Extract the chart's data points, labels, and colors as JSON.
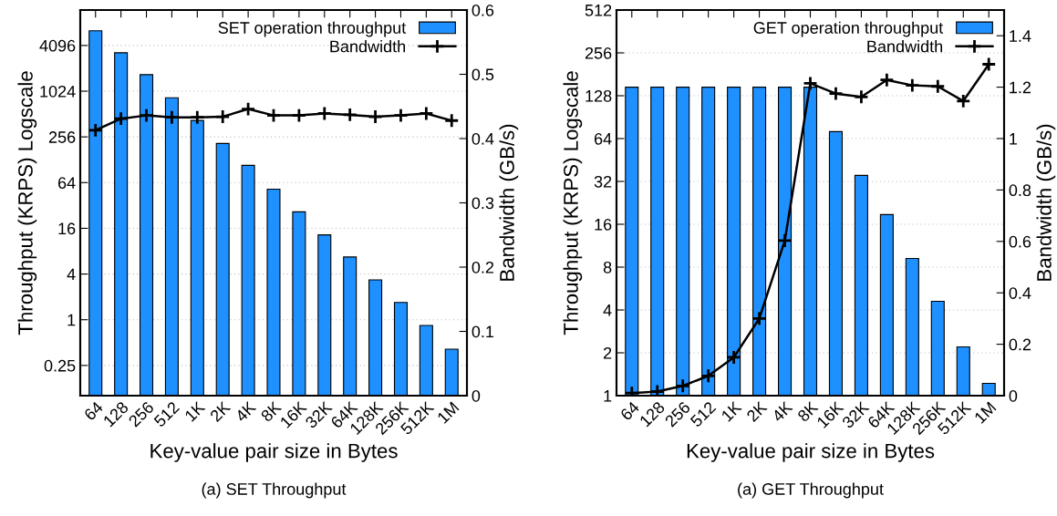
{
  "chart_data": [
    {
      "type": "bar",
      "xlabel": "Key-value pair size in Bytes",
      "ylabel": "Throughput (KRPS) Logscale",
      "y2label": "Bandwidth (GB/s)",
      "categories": [
        "64",
        "128",
        "256",
        "512",
        "1K",
        "2K",
        "4K",
        "8K",
        "16K",
        "32K",
        "64K",
        "128K",
        "256K",
        "512K",
        "1M"
      ],
      "log": "y",
      "ylim": [
        0.1,
        12000
      ],
      "yticks": [
        0.25,
        1,
        4,
        16,
        64,
        256,
        1024,
        4096
      ],
      "y2lim": [
        0,
        0.6
      ],
      "y2ticks": [
        0,
        0.1,
        0.2,
        0.3,
        0.4,
        0.5,
        0.6
      ],
      "grid": "y",
      "legend": "top right",
      "annotations": [
        "(a) SET Throughput"
      ],
      "series": [
        {
          "name": "SET operation throughput",
          "color": "#1e90ff",
          "values": [
            6400,
            3280,
            1690,
            840,
            422,
            210,
            108,
            52.5,
            26.4,
            13.1,
            6.7,
            3.35,
            1.69,
            0.84,
            0.41
          ]
        },
        {
          "name": "Bandwidth",
          "type": "line",
          "axis": "y2",
          "color": "#000000",
          "marker": "cross",
          "line_style": "solid",
          "values": [
            0.413,
            0.431,
            0.436,
            0.433,
            0.433,
            0.434,
            0.446,
            0.436,
            0.436,
            0.439,
            0.437,
            0.434,
            0.436,
            0.439,
            0.428
          ]
        }
      ]
    },
    {
      "type": "bar",
      "xlabel": "Key-value pair size in Bytes",
      "ylabel": "Throughput (KRPS) Logscale",
      "y2label": "Bandwidth (GB/s)",
      "categories": [
        "64",
        "128",
        "256",
        "512",
        "1K",
        "2K",
        "4K",
        "8K",
        "16K",
        "32K",
        "64K",
        "128K",
        "256K",
        "512K",
        "1M"
      ],
      "log": "y",
      "ylim": [
        1,
        512
      ],
      "yticks": [
        1,
        2,
        4,
        8,
        16,
        32,
        64,
        128,
        256,
        512
      ],
      "y2lim": [
        0,
        1.5
      ],
      "y2ticks": [
        0,
        0.2,
        0.4,
        0.6,
        0.8,
        1,
        1.2,
        1.4
      ],
      "grid": "y",
      "legend": "top right",
      "annotations": [
        "(a) GET Throughput"
      ],
      "series": [
        {
          "name": "GET operation throughput",
          "color": "#1e90ff",
          "values": [
            147,
            147,
            147,
            147,
            147,
            147,
            147,
            147,
            71.6,
            35.3,
            18.7,
            9.2,
            4.6,
            2.2,
            1.22
          ]
        },
        {
          "name": "Bandwidth",
          "type": "line",
          "axis": "y2",
          "color": "#000000",
          "marker": "cross",
          "line_style": "solid",
          "values": [
            0.01,
            0.016,
            0.038,
            0.077,
            0.149,
            0.3,
            0.603,
            1.215,
            1.175,
            1.162,
            1.228,
            1.207,
            1.203,
            1.146,
            1.289
          ]
        }
      ]
    }
  ]
}
